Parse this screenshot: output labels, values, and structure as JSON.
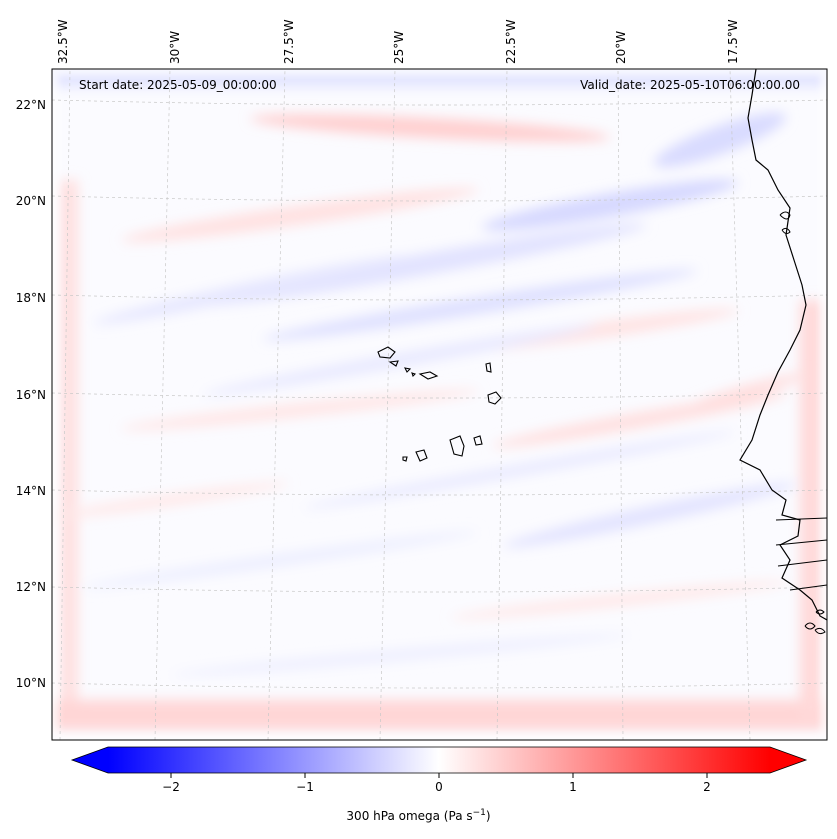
{
  "map": {
    "title_left": "Start date: 2025-05-09_00:00:00",
    "title_right": "Valid_date: 2025-05-10T06:00:00.00",
    "lon_ticks": [
      "32.5°W",
      "30°W",
      "27.5°W",
      "25°W",
      "22.5°W",
      "20°W",
      "17.5°W"
    ],
    "lat_ticks": [
      "22°N",
      "20°N",
      "18°N",
      "16°N",
      "14°N",
      "12°N",
      "10°N"
    ],
    "projection_note": "Lambert-style gridlines, dashed grey",
    "colors": {
      "negative": "#0000ff",
      "zero": "#ffffff",
      "positive": "#ff0000",
      "coast": "#000000",
      "grid": "#bbbbbb"
    }
  },
  "colorbar": {
    "label": "300 hPa omega (Pa s",
    "label_sup": "−1",
    "label_close": ")",
    "ticks": [
      "−2",
      "−1",
      "0",
      "1",
      "2"
    ],
    "range": [
      -2.7,
      2.7
    ]
  }
}
